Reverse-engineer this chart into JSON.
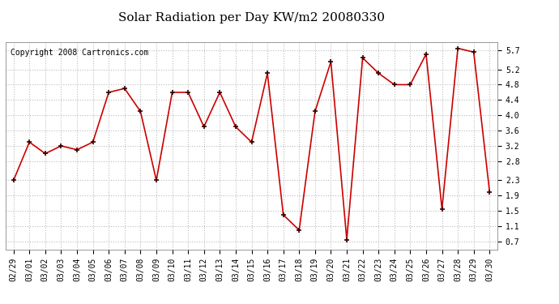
{
  "title": "Solar Radiation per Day KW/m2 20080330",
  "copyright": "Copyright 2008 Cartronics.com",
  "dates": [
    "02/29",
    "03/01",
    "03/02",
    "03/03",
    "03/04",
    "03/05",
    "03/06",
    "03/07",
    "03/08",
    "03/09",
    "03/10",
    "03/11",
    "03/12",
    "03/13",
    "03/14",
    "03/15",
    "03/16",
    "03/17",
    "03/18",
    "03/19",
    "03/20",
    "03/21",
    "03/22",
    "03/23",
    "03/24",
    "03/25",
    "03/26",
    "03/27",
    "03/28",
    "03/29",
    "03/30"
  ],
  "values": [
    2.3,
    3.3,
    3.0,
    3.2,
    3.1,
    3.3,
    4.6,
    4.7,
    4.1,
    2.3,
    4.6,
    4.6,
    3.7,
    4.6,
    3.7,
    3.3,
    5.1,
    1.4,
    1.0,
    4.1,
    5.4,
    0.75,
    5.5,
    5.1,
    4.8,
    4.8,
    5.6,
    1.55,
    5.75,
    5.65,
    2.0
  ],
  "line_color": "#cc0000",
  "marker": "+",
  "marker_color": "#330000",
  "bg_color": "#ffffff",
  "plot_bg_color": "#ffffff",
  "grid_color": "#bbbbbb",
  "yticks": [
    0.7,
    1.1,
    1.5,
    1.9,
    2.3,
    2.8,
    3.2,
    3.6,
    4.0,
    4.4,
    4.8,
    5.2,
    5.7
  ],
  "ylim": [
    0.5,
    5.9
  ],
  "title_fontsize": 11,
  "copyright_fontsize": 7,
  "tick_fontsize": 7
}
